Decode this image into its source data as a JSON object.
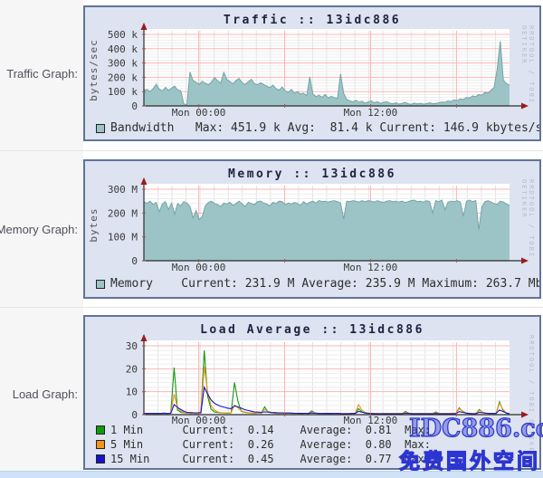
{
  "rows": [
    {
      "label": "Traffic Graph:"
    },
    {
      "label": "Memory Graph:"
    },
    {
      "label": "Load Graph:"
    }
  ],
  "rrd_watermark": "RRDTOOL / TOBI OETIKER",
  "site_watermark": {
    "line1": "IDC886.com",
    "line2": "免费国外空间"
  },
  "colors": {
    "panel_bg": "#dde3f0",
    "panel_border": "#61749a",
    "grid_major": "#ffb3b3",
    "grid_minor": "#ededed",
    "grid_minor_v": "#e3e3e3",
    "axis": "#2b2b2b",
    "arrow": "#9b1b1b",
    "tick": "#b05050",
    "area": "#9cc4c6",
    "area_stroke": "#74a4a6",
    "green": "#0e9c0e",
    "orange": "#f2931d",
    "blue": "#1414cc",
    "text": "#3a3a3a",
    "watermark_blue": "#2c35cf"
  },
  "chart_data": [
    {
      "type": "area",
      "title": "Traffic :: 13idc886",
      "ylabel": "bytes/sec",
      "ylim": [
        0,
        500
      ],
      "yminor": 20,
      "yticks": [
        {
          "v": 0,
          "label": "0"
        },
        {
          "v": 100,
          "label": "100 k"
        },
        {
          "v": 200,
          "label": "200 k"
        },
        {
          "v": 300,
          "label": "300 k"
        },
        {
          "v": 400,
          "label": "400 k"
        },
        {
          "v": 500,
          "label": "500 k"
        }
      ],
      "xticks": [
        {
          "f": 0.15,
          "label": "Mon 00:00"
        },
        {
          "f": 0.62,
          "label": "Mon 12:00"
        }
      ],
      "grid_x_major": [
        0.15,
        0.385,
        0.62,
        0.855
      ],
      "series": [
        {
          "name": "Bandwidth",
          "color_key": "area",
          "values": [
            110,
            115,
            100,
            120,
            152,
            118,
            104,
            130,
            108,
            124,
            138,
            112,
            106,
            14,
            8,
            236,
            178,
            165,
            150,
            172,
            158,
            148,
            168,
            198,
            175,
            160,
            234,
            185,
            170,
            155,
            178,
            192,
            160,
            150,
            170,
            186,
            155,
            148,
            162,
            150,
            138,
            128,
            146,
            120,
            110,
            132,
            105,
            95,
            115,
            88,
            100,
            82,
            90,
            70,
            204,
            85,
            65,
            75,
            60,
            80,
            55,
            68,
            58,
            52,
            224,
            90,
            45,
            35,
            28,
            40,
            25,
            32,
            20,
            28,
            35,
            22,
            30,
            18,
            25,
            30,
            20,
            15,
            22,
            12,
            18,
            25,
            15,
            10,
            20,
            14,
            18,
            12,
            16,
            22,
            15,
            18,
            22,
            28,
            25,
            34,
            30,
            42,
            38,
            50,
            45,
            60,
            55,
            70,
            65,
            80,
            75,
            95,
            90,
            110,
            130,
            258,
            452,
            180,
            155,
            147
          ]
        }
      ],
      "stats": {
        "max": "451.9 k",
        "avg": "81.4 k",
        "current": "146.9 kbytes/s"
      },
      "legend": [
        {
          "color_key": "area",
          "text": "Bandwidth   Max: 451.9 k Avg:  81.4 k Current: 146.9 kbytes/s"
        }
      ]
    },
    {
      "type": "area",
      "title": "Memory :: 13idc886",
      "ylabel": "bytes",
      "ylim": [
        0,
        300
      ],
      "yminor": 20,
      "yticks": [
        {
          "v": 0,
          "label": "0"
        },
        {
          "v": 100,
          "label": "100 M"
        },
        {
          "v": 200,
          "label": "200 M"
        },
        {
          "v": 300,
          "label": "300 M"
        }
      ],
      "xticks": [
        {
          "f": 0.15,
          "label": "Mon 00:00"
        },
        {
          "f": 0.62,
          "label": "Mon 12:00"
        }
      ],
      "grid_x_major": [
        0.15,
        0.385,
        0.62,
        0.855
      ],
      "series": [
        {
          "name": "Memory",
          "color_key": "area",
          "values": [
            248,
            240,
            250,
            236,
            245,
            205,
            238,
            248,
            215,
            242,
            196,
            240,
            230,
            248,
            242,
            228,
            180,
            210,
            172,
            186,
            230,
            245,
            250,
            240,
            236,
            228,
            242,
            238,
            245,
            232,
            240,
            250,
            238,
            228,
            245,
            240,
            236,
            248,
            250,
            242,
            238,
            230,
            245,
            240,
            250,
            248,
            236,
            242,
            238,
            245,
            240,
            232,
            248,
            238,
            245,
            250,
            242,
            252,
            248,
            250,
            246,
            250,
            252,
            248,
            242,
            175,
            250,
            248,
            252,
            250,
            246,
            252,
            248,
            252,
            250,
            246,
            252,
            248,
            244,
            250,
            252,
            248,
            250,
            246,
            250,
            244,
            248,
            252,
            254,
            248,
            250,
            246,
            252,
            248,
            200,
            252,
            248,
            254,
            215,
            246,
            250,
            248,
            252,
            246,
            186,
            250,
            254,
            248,
            252,
            130,
            225,
            248,
            252,
            246,
            240,
            236,
            250,
            246,
            238,
            232
          ]
        }
      ],
      "stats": {
        "current": "231.9 M",
        "average": "235.9 M",
        "maximum": "263.7 Mb"
      },
      "legend": [
        {
          "color_key": "area",
          "text": "Memory    Current: 231.9 M Average: 235.9 M Maximum: 263.7 Mb"
        }
      ]
    },
    {
      "type": "line",
      "title": "Load Average :: 13idc886",
      "ylabel": "",
      "ylim": [
        0,
        30
      ],
      "yminor": 2,
      "yticks": [
        {
          "v": 0,
          "label": "0"
        },
        {
          "v": 10,
          "label": "10"
        },
        {
          "v": 20,
          "label": "20"
        },
        {
          "v": 30,
          "label": "30"
        }
      ],
      "xticks": [
        {
          "f": 0.15,
          "label": "Mon 00:00"
        },
        {
          "f": 0.62,
          "label": "Mon 12:00"
        }
      ],
      "grid_x_major": [
        0.15,
        0.385,
        0.62,
        0.855
      ],
      "series": [
        {
          "name": "1 Min",
          "color_key": "green",
          "values": [
            0.5,
            0.4,
            0.6,
            0.5,
            0.4,
            0.5,
            0.7,
            0.5,
            0.6,
            20.5,
            2.0,
            1.0,
            0.8,
            0.6,
            0.5,
            0.6,
            0.5,
            0.7,
            28.0,
            8.0,
            2.5,
            1.2,
            0.9,
            0.8,
            0.7,
            0.6,
            0.8,
            14.0,
            6.0,
            1.5,
            1.0,
            0.8,
            0.7,
            0.6,
            0.8,
            0.6,
            3.4,
            1.2,
            0.8,
            0.6,
            0.5,
            0.6,
            0.5,
            0.7,
            0.5,
            0.6,
            0.5,
            0.4,
            0.6,
            0.5,
            1.6,
            0.8,
            0.5,
            0.6,
            0.5,
            0.4,
            0.5,
            0.6,
            0.5,
            0.4,
            0.5,
            0.4,
            0.6,
            0.5,
            2.6,
            1.2,
            0.6,
            0.5,
            0.4,
            0.5,
            0.4,
            0.5,
            0.6,
            0.4,
            0.5,
            0.4,
            0.6,
            0.5,
            1.4,
            0.6,
            0.5,
            0.4,
            0.5,
            0.6,
            0.4,
            0.5,
            0.4,
            1.2,
            0.5,
            0.4,
            0.5,
            0.4,
            0.6,
            0.5,
            3.0,
            1.4,
            0.6,
            0.5,
            0.4,
            0.5,
            2.2,
            1.0,
            0.6,
            0.5,
            0.6,
            0.5,
            5.6,
            2.0,
            0.6,
            0.14
          ]
        },
        {
          "name": "5 Min",
          "color_key": "orange",
          "values": [
            0.6,
            0.5,
            0.6,
            0.5,
            0.5,
            0.6,
            0.6,
            0.5,
            0.7,
            9.0,
            3.0,
            1.5,
            0.9,
            0.7,
            0.6,
            0.6,
            0.5,
            0.6,
            21.0,
            10.0,
            4.0,
            2.0,
            1.2,
            0.9,
            0.8,
            0.7,
            0.8,
            4.2,
            3.0,
            1.6,
            1.2,
            0.9,
            0.8,
            0.7,
            0.8,
            0.7,
            2.2,
            1.4,
            0.9,
            0.7,
            0.6,
            0.6,
            0.5,
            0.6,
            0.6,
            0.5,
            0.6,
            0.5,
            0.6,
            0.5,
            1.2,
            0.8,
            0.6,
            0.6,
            0.5,
            0.5,
            0.6,
            0.6,
            0.5,
            0.5,
            0.6,
            0.5,
            0.6,
            0.5,
            4.4,
            2.0,
            0.9,
            0.6,
            0.5,
            0.5,
            0.5,
            0.5,
            0.6,
            0.5,
            0.5,
            0.5,
            0.6,
            0.5,
            1.0,
            0.6,
            0.5,
            0.5,
            0.5,
            0.6,
            0.5,
            0.5,
            0.5,
            0.9,
            0.5,
            0.5,
            0.5,
            0.5,
            0.6,
            0.5,
            2.6,
            1.6,
            0.7,
            0.5,
            0.5,
            0.5,
            1.8,
            1.1,
            0.7,
            0.6,
            0.6,
            0.5,
            5.0,
            2.4,
            0.8,
            0.26
          ]
        },
        {
          "name": "15 Min",
          "color_key": "blue",
          "values": [
            0.5,
            0.5,
            0.5,
            0.5,
            0.5,
            0.5,
            0.5,
            0.5,
            0.6,
            4.4,
            3.2,
            2.2,
            1.4,
            1.0,
            0.9,
            0.8,
            0.8,
            0.9,
            12.0,
            9.0,
            6.5,
            5.0,
            4.2,
            3.6,
            3.2,
            2.8,
            2.6,
            3.8,
            3.4,
            2.8,
            2.2,
            1.8,
            1.5,
            1.2,
            1.1,
            1.0,
            1.2,
            1.1,
            1.0,
            0.9,
            0.8,
            0.8,
            0.7,
            0.7,
            0.7,
            0.6,
            0.6,
            0.6,
            0.6,
            0.5,
            0.7,
            0.6,
            0.5,
            0.5,
            0.5,
            0.5,
            0.5,
            0.5,
            0.5,
            0.4,
            0.4,
            0.4,
            0.5,
            0.5,
            1.4,
            1.1,
            0.8,
            0.6,
            0.5,
            0.4,
            0.4,
            0.4,
            0.4,
            0.4,
            0.4,
            0.4,
            0.4,
            0.4,
            0.6,
            0.5,
            0.4,
            0.4,
            0.4,
            0.4,
            0.4,
            0.4,
            0.4,
            0.5,
            0.4,
            0.4,
            0.4,
            0.4,
            0.4,
            0.4,
            1.3,
            1.0,
            0.7,
            0.5,
            0.4,
            0.4,
            1.0,
            0.8,
            0.6,
            0.5,
            0.5,
            0.5,
            2.0,
            1.4,
            0.8,
            0.45
          ]
        }
      ],
      "stats": [
        {
          "name": "1 Min",
          "current": "0.14",
          "average": "0.81"
        },
        {
          "name": "5 Min",
          "current": "0.26",
          "average": "0.80"
        },
        {
          "name": "15 Min",
          "current": "0.45",
          "average": "0.77"
        }
      ],
      "legend": [
        {
          "color_key": "green",
          "text": "1 Min      Current:  0.14    Average:  0.81  Max: "
        },
        {
          "color_key": "orange",
          "text": "5 Min      Current:  0.26    Average:  0.80  Max: "
        },
        {
          "color_key": "blue",
          "text": "15 Min     Current:  0.45    Average:  0.77  Max: "
        }
      ]
    }
  ]
}
